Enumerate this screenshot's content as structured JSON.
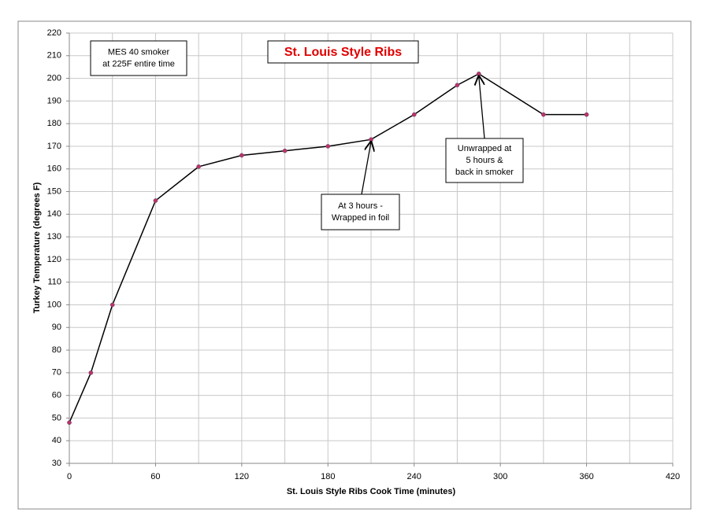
{
  "chart_data": {
    "type": "line",
    "title": "St. Louis Style Ribs",
    "x_label": "St. Louis Style Ribs Cook Time (minutes)",
    "y_label": "Turkey Temperature (degrees F)",
    "x": [
      0,
      15,
      30,
      60,
      90,
      120,
      150,
      180,
      210,
      240,
      270,
      285,
      330,
      360
    ],
    "series": [
      {
        "name": "Temperature",
        "color": "#000000",
        "marker_color": "#c0306a",
        "values": [
          48,
          70,
          100,
          146,
          161,
          166,
          168,
          170,
          173,
          184,
          197,
          202,
          184,
          184
        ]
      }
    ],
    "xlim": [
      0,
      420
    ],
    "xticks": [
      0,
      60,
      120,
      180,
      240,
      300,
      360,
      420
    ],
    "x_minor_ticks": [
      30,
      90,
      150,
      210,
      270,
      330,
      390
    ],
    "ylim": [
      30,
      220
    ],
    "yticks": [
      30,
      40,
      50,
      60,
      70,
      80,
      90,
      100,
      110,
      120,
      130,
      140,
      150,
      160,
      170,
      180,
      190,
      200,
      210,
      220
    ],
    "grid": true,
    "annotations": [
      {
        "lines": [
          "MES 40 smoker",
          "at 225F entire time"
        ]
      },
      {
        "lines": [
          "At 3 hours -",
          "Wrapped in foil"
        ]
      },
      {
        "lines": [
          "Unwrapped at",
          "5 hours &",
          "back in smoker"
        ]
      }
    ]
  }
}
